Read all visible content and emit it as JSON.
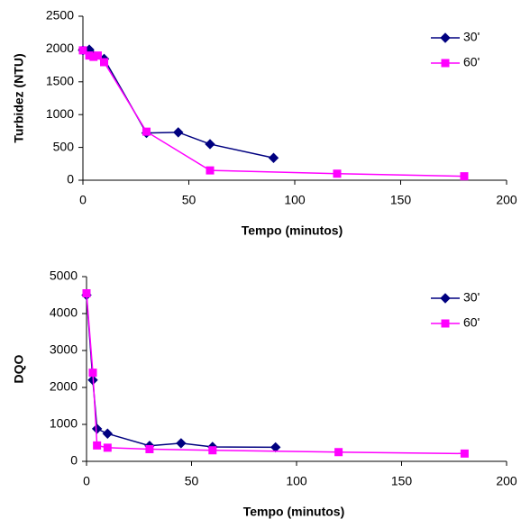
{
  "chart_data": [
    {
      "type": "line",
      "ylabel": "Turbidez (NTU)",
      "xlabel": "Tempo (minutos)",
      "xlim": [
        0,
        200
      ],
      "xticks": [
        0,
        50,
        100,
        150,
        200
      ],
      "ylim": [
        0,
        2500
      ],
      "yticks": [
        0,
        500,
        1000,
        1500,
        2000,
        2500
      ],
      "legend": "upper right",
      "series": [
        {
          "name": "30'",
          "color": "#000080",
          "marker": "diamond",
          "x": [
            0,
            3,
            5,
            10,
            30,
            45,
            60,
            90
          ],
          "values": [
            1980,
            1990,
            1900,
            1850,
            720,
            730,
            550,
            340
          ]
        },
        {
          "name": "60'",
          "color": "#ff00ff",
          "marker": "square",
          "x": [
            0,
            3,
            5,
            7,
            10,
            30,
            60,
            120,
            180
          ],
          "values": [
            1980,
            1900,
            1880,
            1900,
            1800,
            740,
            150,
            100,
            60
          ]
        }
      ]
    },
    {
      "type": "line",
      "ylabel": "DQO",
      "xlabel": "Tempo (minutos)",
      "xlim": [
        0,
        200
      ],
      "xticks": [
        0,
        50,
        100,
        150,
        200
      ],
      "ylim": [
        0,
        5000
      ],
      "yticks": [
        0,
        1000,
        2000,
        3000,
        4000,
        5000
      ],
      "legend": "upper right",
      "series": [
        {
          "name": "30'",
          "color": "#000080",
          "marker": "diamond",
          "x": [
            0,
            3,
            5,
            10,
            30,
            45,
            60,
            90
          ],
          "values": [
            4500,
            2200,
            880,
            750,
            420,
            490,
            390,
            380
          ]
        },
        {
          "name": "60'",
          "color": "#ff00ff",
          "marker": "square",
          "x": [
            0,
            3,
            5,
            10,
            30,
            60,
            120,
            180
          ],
          "values": [
            4550,
            2400,
            430,
            370,
            330,
            300,
            250,
            210
          ]
        }
      ]
    }
  ]
}
